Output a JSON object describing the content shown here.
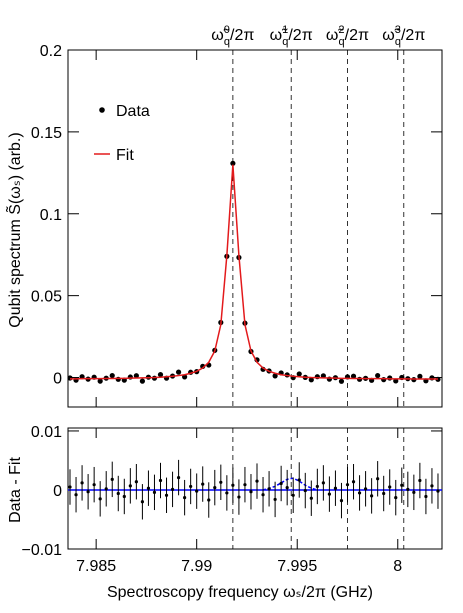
{
  "chart_data": [
    {
      "type": "scatter",
      "ylabel": "Qubit spectrum S̃(ωₛ) (arb.)",
      "x": [
        7.9837,
        7.984,
        7.9843,
        7.9846,
        7.9849,
        7.9852,
        7.9855,
        7.9858,
        7.9861,
        7.9864,
        7.9867,
        7.987,
        7.9873,
        7.9876,
        7.9879,
        7.9882,
        7.9885,
        7.9888,
        7.9891,
        7.9894,
        7.9897,
        7.99,
        7.9903,
        7.9906,
        7.9909,
        7.9912,
        7.9915,
        7.9918,
        7.9921,
        7.9924,
        7.9927,
        7.993,
        7.9933,
        7.9936,
        7.9939,
        7.9942,
        7.9945,
        7.9948,
        7.9951,
        7.9954,
        7.9957,
        7.996,
        7.9963,
        7.9966,
        7.9969,
        7.9972,
        7.9975,
        7.9978,
        7.9981,
        7.9984,
        7.9987,
        7.999,
        7.9993,
        7.9996,
        7.9999,
        8.0002,
        8.0005,
        8.0008,
        8.0011,
        8.0014,
        8.0017,
        8.002
      ],
      "series": [
        {
          "name": "Data",
          "color": "#000000",
          "marker": "point",
          "values": [
            -0.0003,
            -0.0016,
            0.0005,
            -0.001,
            0.0002,
            -0.0022,
            -0.0004,
            0.0012,
            -0.0011,
            -0.0016,
            0.0003,
            0.0011,
            -0.0022,
            0.0002,
            -0.0004,
            0.0018,
            -0.0004,
            0.0009,
            0.0033,
            0.0004,
            0.0032,
            0.0036,
            0.0068,
            0.0076,
            0.0166,
            0.0336,
            0.074,
            0.1308,
            0.0733,
            0.0332,
            0.0159,
            0.0108,
            0.005,
            0.004,
            0.001,
            0.0028,
            0.0016,
            -0.0001,
            0.0022,
            0.0001,
            -0.0014,
            0.0005,
            0.001,
            -0.001,
            -0.0001,
            -0.0023,
            0.0004,
            0.0008,
            -0.0011,
            -0.0005,
            -0.0017,
            0.0012,
            -0.0013,
            -0.0003,
            -0.0021,
            0,
            -0.0007,
            -0.0013,
            0.0007,
            -0.002,
            -0.0002,
            -0.0011
          ]
        },
        {
          "name": "Fit",
          "color": "#e31a1c",
          "marker": "line",
          "values": [
            -0.0008,
            -0.0008,
            -0.0007,
            -0.0007,
            -0.0007,
            -0.0007,
            -0.0006,
            -0.0006,
            -0.0005,
            -0.0005,
            -0.0004,
            -0.0003,
            -0.0002,
            -0.0001,
            0,
            0.0002,
            0.0005,
            0.0008,
            0.0012,
            0.0017,
            0.0026,
            0.0038,
            0.0058,
            0.0093,
            0.0162,
            0.0323,
            0.0745,
            0.13,
            0.0745,
            0.0323,
            0.0162,
            0.0093,
            0.0058,
            0.0038,
            0.0026,
            0.0017,
            0.0012,
            0.0008,
            0.0005,
            0.0002,
            0,
            -0.0001,
            -0.0002,
            -0.0003,
            -0.0004,
            -0.0005,
            -0.0005,
            -0.0006,
            -0.0006,
            -0.0007,
            -0.0007,
            -0.0007,
            -0.0007,
            -0.0008,
            -0.0008,
            -0.0008,
            -0.0008,
            -0.0009,
            -0.0009,
            -0.0009,
            -0.0009,
            -0.0009
          ]
        }
      ],
      "xlim": [
        7.9836,
        8.0022
      ],
      "xticks": [
        7.985,
        7.99,
        7.995,
        8
      ],
      "ylim": [
        -0.018,
        0.2
      ],
      "yticks": [
        0,
        0.05,
        0.1,
        0.15,
        0.2
      ],
      "legend": "upper left",
      "annotations": [
        {
          "x": 7.9918,
          "base": "ω̃",
          "sub": "q",
          "sup": "0",
          "tail": "/2π"
        },
        {
          "x": 7.9947,
          "base": "ω̃",
          "sub": "q",
          "sup": "1",
          "tail": "/2π"
        },
        {
          "x": 7.9975,
          "base": "ω̃",
          "sub": "q",
          "sup": "2",
          "tail": "/2π"
        },
        {
          "x": 8.0003,
          "base": "ω̃",
          "sub": "q",
          "sup": "3",
          "tail": "/2π"
        }
      ]
    },
    {
      "type": "residual",
      "ylabel": "Data - Fit",
      "xlabel": "Spectroscopy frequency ωₛ/2π (GHz)",
      "color": "#000000",
      "values": [
        0.0005,
        -0.0008,
        0.0012,
        -0.0003,
        0.0009,
        -0.0015,
        0.0002,
        0.0018,
        -0.0006,
        -0.0011,
        0.0007,
        0.0014,
        -0.002,
        0.0003,
        -0.0004,
        0.0016,
        -0.0009,
        0.0001,
        0.0021,
        -0.0013,
        0.0006,
        -0.0002,
        0.001,
        -0.0017,
        0.0004,
        0.0013,
        -0.0005,
        0.0008,
        -0.0012,
        0.0009,
        -0.0003,
        0.0015,
        -0.0008,
        0.0002,
        -0.0016,
        0.0011,
        0.0004,
        -0.0009,
        0.0017,
        -0.0001,
        -0.0014,
        0.0006,
        0.0012,
        -0.0007,
        0.0003,
        -0.0018,
        0.0009,
        0.0014,
        -0.0005,
        0.0002,
        -0.001,
        0.0019,
        -0.0006,
        0.0005,
        -0.0013,
        0.0008,
        0.0001,
        -0.0004,
        0.0016,
        -0.0011,
        0.0007,
        -0.0002
      ],
      "errors": [
        0.003,
        0.003,
        0.003,
        0.003,
        0.003,
        0.003,
        0.003,
        0.003,
        0.003,
        0.003,
        0.003,
        0.003,
        0.003,
        0.003,
        0.003,
        0.003,
        0.003,
        0.003,
        0.003,
        0.003,
        0.003,
        0.003,
        0.003,
        0.003,
        0.003,
        0.003,
        0.003,
        0.003,
        0.003,
        0.003,
        0.003,
        0.003,
        0.003,
        0.003,
        0.003,
        0.003,
        0.003,
        0.003,
        0.003,
        0.003,
        0.003,
        0.003,
        0.003,
        0.003,
        0.003,
        0.003,
        0.003,
        0.003,
        0.003,
        0.003,
        0.003,
        0.003,
        0.003,
        0.003,
        0.003,
        0.003,
        0.003,
        0.003,
        0.003,
        0.003,
        0.003,
        0.003
      ],
      "curves": [
        {
          "color": "#0000ff",
          "style": "solid",
          "x": [
            7.9836,
            8.0022
          ],
          "values": [
            0,
            0
          ]
        },
        {
          "color": "#0000ff",
          "style": "dashed",
          "x": [
            7.9933,
            7.9936,
            7.9939,
            7.9942,
            7.9945,
            7.9948,
            7.9951,
            7.9954,
            7.9957,
            7.996
          ],
          "values": [
            0,
            0.0003,
            0.0006,
            0.0012,
            0.0018,
            0.002,
            0.0015,
            0.0008,
            0.0003,
            0
          ]
        }
      ],
      "xlim": [
        7.9836,
        8.0022
      ],
      "xticks": [
        7.985,
        7.99,
        7.995,
        8
      ],
      "ylim": [
        -0.01,
        0.0105
      ],
      "yticks": [
        {
          "value": -0.01,
          "label": "−0.01"
        },
        0,
        0.01
      ]
    }
  ]
}
